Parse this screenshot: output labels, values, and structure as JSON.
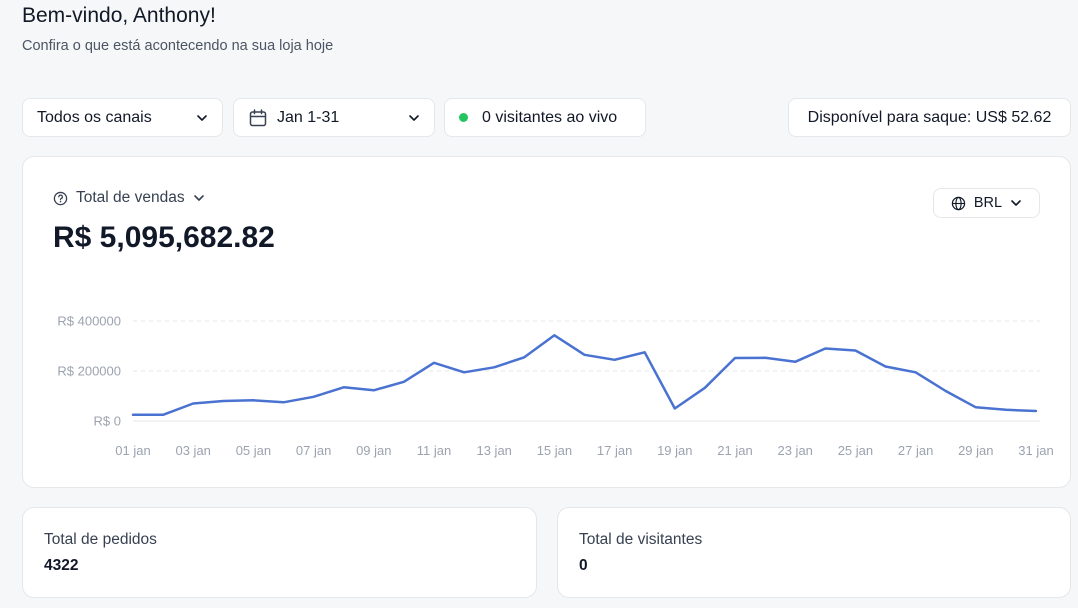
{
  "header": {
    "welcome": "Bem-vindo, Anthony!",
    "subtitle": "Confira o que está acontecendo na sua loja hoje"
  },
  "filters": {
    "channel": "Todos os canais",
    "date_range": "Jan 1-31",
    "live_visitors": "0 visitantes ao vivo",
    "balance": "Disponível para saque: US$ 52.62"
  },
  "sales": {
    "title": "Total de vendas",
    "total": "R$ 5,095,682.82",
    "currency": "BRL"
  },
  "colors": {
    "line": "#4a72d1",
    "live_dot": "#22c55e",
    "grid": "#e5e7eb"
  },
  "chart_data": {
    "type": "line",
    "categories": [
      "01 jan",
      "02 jan",
      "03 jan",
      "04 jan",
      "05 jan",
      "06 jan",
      "07 jan",
      "08 jan",
      "09 jan",
      "10 jan",
      "11 jan",
      "12 jan",
      "13 jan",
      "14 jan",
      "15 jan",
      "16 jan",
      "17 jan",
      "18 jan",
      "19 jan",
      "20 jan",
      "21 jan",
      "22 jan",
      "23 jan",
      "24 jan",
      "25 jan",
      "26 jan",
      "27 jan",
      "28 jan",
      "29 jan",
      "30 jan",
      "31 jan"
    ],
    "x_tick_labels": [
      "01 jan",
      "03 jan",
      "05 jan",
      "07 jan",
      "09 jan",
      "11 jan",
      "13 jan",
      "15 jan",
      "17 jan",
      "19 jan",
      "21 jan",
      "23 jan",
      "25 jan",
      "27 jan",
      "29 jan",
      "31 jan"
    ],
    "y_tick_labels": [
      "R$ 0",
      "R$ 200000",
      "R$ 400000"
    ],
    "y_ticks": [
      0,
      200000,
      400000
    ],
    "ylim": [
      0,
      400000
    ],
    "grid": true,
    "series": [
      {
        "values": [
          25000,
          25000,
          70000,
          80000,
          83000,
          75000,
          97000,
          135000,
          123000,
          157000,
          233000,
          195000,
          215000,
          255000,
          343000,
          265000,
          245000,
          275000,
          50000,
          133000,
          252000,
          253000,
          237000,
          290000,
          282000,
          218000,
          195000,
          120000,
          55000,
          45000,
          40000
        ]
      }
    ]
  },
  "stats": {
    "orders_label": "Total de pedidos",
    "orders_value": "4322",
    "visitors_label": "Total de visitantes",
    "visitors_value": "0"
  }
}
